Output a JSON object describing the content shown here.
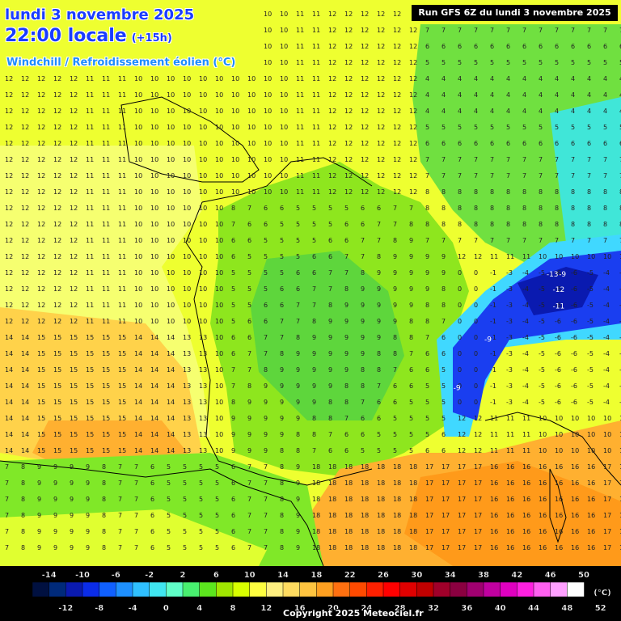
{
  "header": {
    "date": "lundi 3 novembre 2025",
    "time": "22:00 locale",
    "offset": "(+15h)",
    "subtitle": "Windchill / Refroidissement éolien (°C)",
    "run": "Run GFS 6Z du lundi 3 novembre 2025"
  },
  "legend": {
    "unit": "(°C)",
    "top_labels": [
      "-14",
      "-10",
      "-6",
      "-2",
      "2",
      "6",
      "10",
      "14",
      "18",
      "22",
      "26",
      "30",
      "34",
      "38",
      "42",
      "46",
      "50"
    ],
    "bottom_labels": [
      "-12",
      "-8",
      "-4",
      "0",
      "4",
      "8",
      "12",
      "16",
      "20",
      "24",
      "28",
      "32",
      "36",
      "40",
      "44",
      "48",
      "52"
    ],
    "colors": [
      "#001040",
      "#002a7a",
      "#0a1ab0",
      "#0b2ce8",
      "#1060ff",
      "#1e90ff",
      "#2fc0ff",
      "#40e6f0",
      "#60ffc8",
      "#48f070",
      "#5ce61e",
      "#a0e600",
      "#d8ff00",
      "#ffff40",
      "#fff080",
      "#ffdc60",
      "#ffc440",
      "#ffa020",
      "#ff7010",
      "#ff4a00",
      "#ff2000",
      "#ff0000",
      "#e00000",
      "#c00000",
      "#a0002a",
      "#8a0040",
      "#a00070",
      "#c000a0",
      "#e000c0",
      "#ff20e0",
      "#ff60f0",
      "#ffa0ff",
      "#ffffff"
    ]
  },
  "map": {
    "regions": [
      {
        "name": "north-sea-yellow",
        "color": "#f0ff20"
      },
      {
        "name": "atlantic-light",
        "color": "#f6ff60"
      },
      {
        "name": "biscay-orange",
        "color": "#ffd24a"
      },
      {
        "name": "france-green",
        "color": "#8ee61e"
      },
      {
        "name": "alps-blue",
        "color": "#1a3ef0"
      },
      {
        "name": "mediterranean-orange",
        "color": "#ff9a1a"
      },
      {
        "name": "iberia-green",
        "color": "#80e828"
      }
    ],
    "value_samples": [
      {
        "v": "-13",
        "lx": 0.88,
        "ly": 0.445
      },
      {
        "v": "-9",
        "lx": 0.9,
        "ly": 0.445
      },
      {
        "v": "-12",
        "lx": 0.89,
        "ly": 0.47
      },
      {
        "v": "-11",
        "lx": 0.89,
        "ly": 0.497
      },
      {
        "v": "-9",
        "lx": 0.73,
        "ly": 0.628
      },
      {
        "v": "-9",
        "lx": 0.78,
        "ly": 0.55
      }
    ]
  },
  "copyright": "Copyright 2025 Meteociel.fr"
}
